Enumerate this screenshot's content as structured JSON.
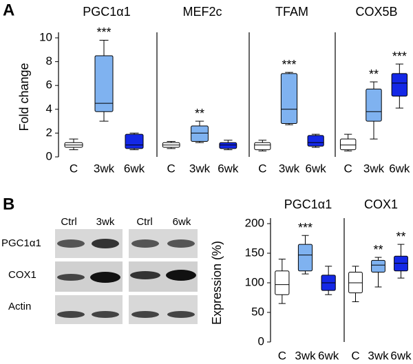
{
  "panel_labels": [
    "A",
    "B"
  ],
  "blot": {
    "lanes": [
      "Ctrl",
      "3wk",
      "Ctrl",
      "6wk"
    ],
    "rows": [
      "PGC1α1",
      "COX1",
      "Actin"
    ]
  },
  "chart_data": [
    {
      "type": "box",
      "title": "PGC1α1",
      "ylabel": "Fold change",
      "categories": [
        "C",
        "3wk",
        "6wk"
      ],
      "colors": [
        "#ffffff",
        "#7fb2f0",
        "#1428e6"
      ],
      "ylim": [
        0,
        10
      ],
      "yticks": [
        0,
        2,
        4,
        6,
        8,
        10
      ],
      "boxes": [
        {
          "whislo": 0.6,
          "q1": 0.8,
          "med": 1.0,
          "q3": 1.2,
          "whishi": 1.5
        },
        {
          "whislo": 3.0,
          "q1": 3.8,
          "med": 4.5,
          "q3": 8.5,
          "whishi": 9.8
        },
        {
          "whislo": 0.6,
          "q1": 0.7,
          "med": 1.0,
          "q3": 1.9,
          "whishi": 2.0
        }
      ],
      "annotations": [
        null,
        "***",
        null
      ]
    },
    {
      "type": "box",
      "title": "MEF2c",
      "categories": [
        "C",
        "3wk",
        "6wk"
      ],
      "colors": [
        "#ffffff",
        "#7fb2f0",
        "#1428e6"
      ],
      "ylim": [
        0,
        10
      ],
      "boxes": [
        {
          "whislo": 0.7,
          "q1": 0.8,
          "med": 1.0,
          "q3": 1.2,
          "whishi": 1.3
        },
        {
          "whislo": 1.2,
          "q1": 1.3,
          "med": 2.0,
          "q3": 2.6,
          "whishi": 3.0
        },
        {
          "whislo": 0.6,
          "q1": 0.7,
          "med": 1.0,
          "q3": 1.2,
          "whishi": 1.4
        }
      ],
      "annotations": [
        null,
        "**",
        null
      ]
    },
    {
      "type": "box",
      "title": "TFAM",
      "categories": [
        "C",
        "3wk",
        "6wk"
      ],
      "colors": [
        "#ffffff",
        "#7fb2f0",
        "#1428e6"
      ],
      "ylim": [
        0,
        10
      ],
      "boxes": [
        {
          "whislo": 0.5,
          "q1": 0.6,
          "med": 1.0,
          "q3": 1.2,
          "whishi": 1.4
        },
        {
          "whislo": 2.7,
          "q1": 2.8,
          "med": 4.0,
          "q3": 7.0,
          "whishi": 7.1
        },
        {
          "whislo": 0.8,
          "q1": 0.9,
          "med": 1.2,
          "q3": 1.8,
          "whishi": 1.9
        }
      ],
      "annotations": [
        null,
        "***",
        null
      ]
    },
    {
      "type": "box",
      "title": "COX5B",
      "categories": [
        "C",
        "3wk",
        "6wk"
      ],
      "colors": [
        "#ffffff",
        "#7fb2f0",
        "#1428e6"
      ],
      "ylim": [
        0,
        10
      ],
      "boxes": [
        {
          "whislo": 0.5,
          "q1": 0.6,
          "med": 1.0,
          "q3": 1.5,
          "whishi": 1.9
        },
        {
          "whislo": 1.5,
          "q1": 3.0,
          "med": 3.8,
          "q3": 5.7,
          "whishi": 6.3
        },
        {
          "whislo": 4.1,
          "q1": 5.1,
          "med": 6.2,
          "q3": 7.0,
          "whishi": 7.8
        }
      ],
      "annotations": [
        null,
        "**",
        "***"
      ]
    },
    {
      "type": "box",
      "title": "PGC1α1",
      "ylabel": "Expression (%)",
      "categories": [
        "C",
        "3wk",
        "6wk"
      ],
      "colors": [
        "#ffffff",
        "#7fb2f0",
        "#1428e6"
      ],
      "ylim": [
        0,
        200
      ],
      "yticks": [
        0,
        50,
        100,
        150,
        200
      ],
      "boxes": [
        {
          "whislo": 65,
          "q1": 80,
          "med": 97,
          "q3": 120,
          "whishi": 140
        },
        {
          "whislo": 115,
          "q1": 120,
          "med": 147,
          "q3": 165,
          "whishi": 180
        },
        {
          "whislo": 80,
          "q1": 87,
          "med": 100,
          "q3": 113,
          "whishi": 128
        }
      ],
      "annotations": [
        null,
        "***",
        null
      ]
    },
    {
      "type": "box",
      "title": "COX1",
      "categories": [
        "C",
        "3wk",
        "6wk"
      ],
      "colors": [
        "#ffffff",
        "#7fb2f0",
        "#1428e6"
      ],
      "ylim": [
        0,
        200
      ],
      "boxes": [
        {
          "whislo": 68,
          "q1": 83,
          "med": 100,
          "q3": 118,
          "whishi": 128
        },
        {
          "whislo": 93,
          "q1": 118,
          "med": 130,
          "q3": 138,
          "whishi": 143
        },
        {
          "whislo": 108,
          "q1": 120,
          "med": 133,
          "q3": 145,
          "whishi": 165
        }
      ],
      "annotations": [
        null,
        "**",
        "**"
      ]
    }
  ]
}
